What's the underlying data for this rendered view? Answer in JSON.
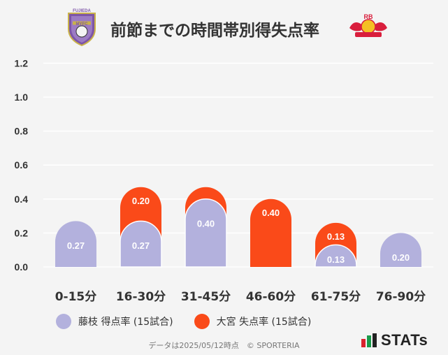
{
  "header": {
    "title": "前節までの時間帯別得失点率",
    "home_logo_text": "FUJIEDA MYFC",
    "away_logo_text": "RB"
  },
  "chart_data": {
    "type": "bar",
    "categories": [
      "0-15分",
      "16-30分",
      "31-45分",
      "46-60分",
      "61-75分",
      "76-90分"
    ],
    "series": [
      {
        "name": "藤枝 得点率 (15試合)",
        "values": [
          0.27,
          0.27,
          0.4,
          0.0,
          0.13,
          0.2
        ],
        "color": "#b3b1dd"
      },
      {
        "name": "大宮 失点率 (15試合)",
        "values": [
          0.0,
          0.2,
          0.07,
          0.4,
          0.13,
          0.0
        ],
        "color": "#fa4a19"
      }
    ],
    "stacked": true,
    "yticks": [
      "0.0",
      "0.2",
      "0.4",
      "0.6",
      "0.8",
      "1.0",
      "1.2"
    ],
    "ylim": [
      0,
      1.2
    ],
    "grid": true,
    "legend_position": "bottom"
  },
  "legend": {
    "home": "藤枝 得点率 (15試合)",
    "away": "大宮 失点率 (15試合)"
  },
  "footer": {
    "source": "データは2025/05/12時点　© SPORTERIA",
    "brand": "STATs"
  },
  "colors": {
    "home": "#b3b1dd",
    "away": "#fa4a19",
    "background": "#f4f4f4"
  }
}
